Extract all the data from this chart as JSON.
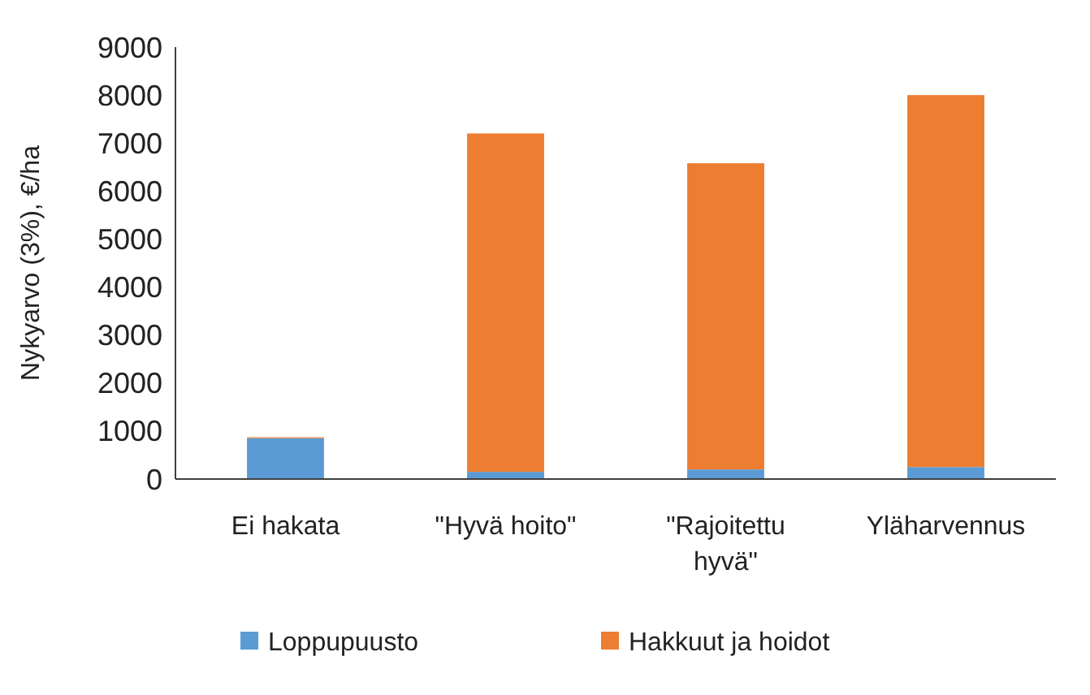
{
  "chart_data": {
    "type": "bar",
    "stacked": true,
    "ylabel": "Nykyarvo (3%), €/ha",
    "categories": [
      "Ei hakata",
      "\"Hyvä hoito\"",
      "\"Rajoitettu hyvä\"",
      "Yläharvennus"
    ],
    "series": [
      {
        "name": "Loppupuusto",
        "color": "#5b9bd5",
        "values": [
          850,
          150,
          200,
          250
        ]
      },
      {
        "name": "Hakkuut ja hoidot",
        "color": "#ed7d31",
        "values": [
          20,
          7050,
          6380,
          7750
        ]
      }
    ],
    "ylim": [
      0,
      9000
    ],
    "yticks": [
      0,
      1000,
      2000,
      3000,
      4000,
      5000,
      6000,
      7000,
      8000,
      9000
    ],
    "grid": false,
    "legend": "bottom"
  }
}
